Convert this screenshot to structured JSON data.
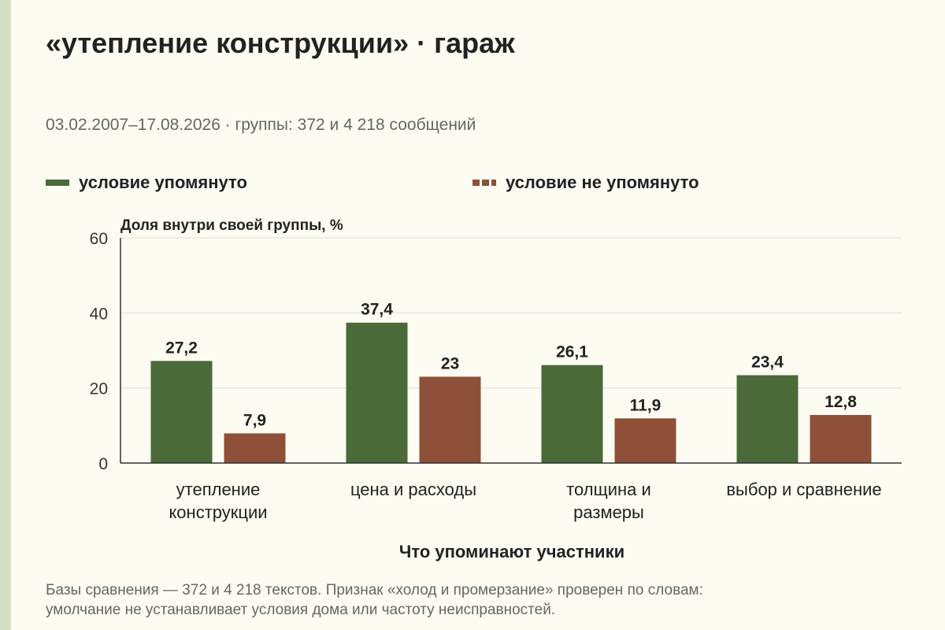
{
  "colors": {
    "mentioned": "#4a6a39",
    "not_mentioned": "#8e5039",
    "background": "#fdfcf3",
    "grid": "#dddddd",
    "axis": "#333333"
  },
  "header": {
    "title": "«утепление конструкции» · гараж",
    "subtitle": "03.02.2007–17.08.2026 · группы: 372 и 4 218 сообщений"
  },
  "legend": {
    "items": [
      {
        "label": "условие упомянуто",
        "style": "solid"
      },
      {
        "label": "условие не упомянуто",
        "style": "dashed"
      }
    ]
  },
  "chart_data": {
    "type": "bar",
    "ylabel": "Доля внутри своей группы, %",
    "xlabel": "Что упоминают участники",
    "ylim": [
      0,
      60
    ],
    "yticks": [
      0,
      20,
      40,
      60
    ],
    "grid": true,
    "legend_position": "top",
    "categories": [
      [
        "утепление",
        "конструкции"
      ],
      [
        "цена и расходы"
      ],
      [
        "толщина и",
        "размеры"
      ],
      [
        "выбор и сравнение"
      ]
    ],
    "series": [
      {
        "name": "условие упомянуто",
        "values": [
          27.2,
          37.4,
          26.1,
          23.4
        ],
        "labels": [
          "27,2",
          "37,4",
          "26,1",
          "23,4"
        ]
      },
      {
        "name": "условие не упомянуто",
        "values": [
          7.9,
          23,
          11.9,
          12.8
        ],
        "labels": [
          "7,9",
          "23",
          "11,9",
          "12,8"
        ]
      }
    ]
  },
  "footnote": {
    "line1": "Базы сравнения — 372 и 4 218 текстов. Признак «холод и промерзание» проверен по словам:",
    "line2": "умолчание не устанавливает условия дома или частоту неисправностей."
  }
}
